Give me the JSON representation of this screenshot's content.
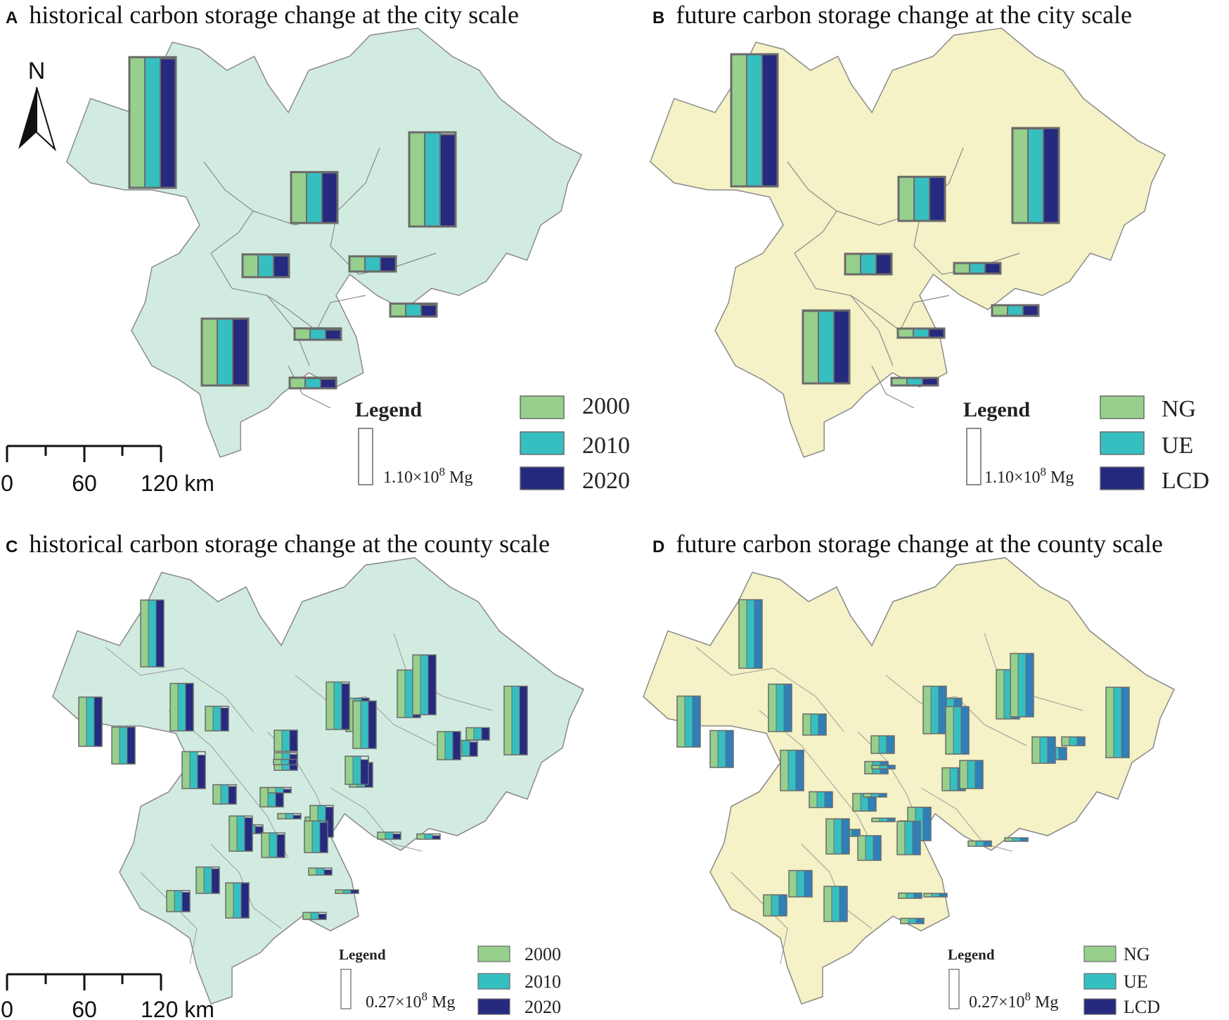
{
  "panels": [
    {
      "letter": "A",
      "title": "historical carbon storage change at the city scale"
    },
    {
      "letter": "B",
      "title": "future carbon storage change at the city scale"
    },
    {
      "letter": "C",
      "title": "historical carbon storage change at the county scale"
    },
    {
      "letter": "D",
      "title": "future carbon storage change at the county scale"
    }
  ],
  "north_label": "N",
  "scale_bar": {
    "labels": [
      "0",
      "60",
      "120 km"
    ]
  },
  "legend": {
    "title": "Legend",
    "city_reference": {
      "base": "1.10×10",
      "exp": "8",
      "unit": " Mg"
    },
    "county_reference": {
      "base": "0.27×10",
      "exp": "8",
      "unit": " Mg"
    },
    "historical_series": [
      "2000",
      "2010",
      "2020"
    ],
    "future_series": [
      "NG",
      "UE",
      "LCD"
    ]
  },
  "colors": {
    "green": "#96d08c",
    "teal": "#36bfc0",
    "navy": "#252a7f",
    "blue_future": "#2f7fb8",
    "historical_map_fill": "#d2ebe1",
    "future_map_fill": "#f4f2c6",
    "boundary": "#8a8a8a",
    "bar_outline": "#6b6b6b"
  },
  "chart_data": [
    {
      "type": "bar",
      "title": "historical carbon storage change at the city scale",
      "unit": "×10^8 Mg",
      "series_names": [
        "2000",
        "2010",
        "2020"
      ],
      "regions": [
        {
          "values": [
            1.72,
            1.72,
            1.7
          ]
        },
        {
          "values": [
            0.67,
            0.67,
            0.66
          ]
        },
        {
          "values": [
            1.24,
            1.24,
            1.21
          ]
        },
        {
          "values": [
            0.3,
            0.3,
            0.28
          ]
        },
        {
          "values": [
            0.2,
            0.2,
            0.19
          ]
        },
        {
          "values": [
            0.17,
            0.17,
            0.15
          ]
        },
        {
          "values": [
            0.88,
            0.88,
            0.88
          ]
        },
        {
          "values": [
            0.15,
            0.14,
            0.13
          ]
        },
        {
          "values": [
            0.14,
            0.13,
            0.12
          ]
        }
      ]
    },
    {
      "type": "bar",
      "title": "future carbon storage change at the city scale",
      "unit": "×10^8 Mg",
      "series_names": [
        "NG",
        "UE",
        "LCD"
      ],
      "regions": [
        {
          "values": [
            1.74,
            1.74,
            1.74
          ]
        },
        {
          "values": [
            0.58,
            0.58,
            0.58
          ]
        },
        {
          "values": [
            1.24,
            1.24,
            1.25
          ]
        },
        {
          "values": [
            0.27,
            0.27,
            0.27
          ]
        },
        {
          "values": [
            0.14,
            0.14,
            0.14
          ]
        },
        {
          "values": [
            0.14,
            0.14,
            0.14
          ]
        },
        {
          "values": [
            0.95,
            0.95,
            0.96
          ]
        },
        {
          "values": [
            0.12,
            0.12,
            0.12
          ]
        },
        {
          "values": [
            0.1,
            0.1,
            0.1
          ]
        }
      ]
    },
    {
      "type": "bar",
      "title": "historical carbon storage change at the county scale",
      "unit": "×10^8 Mg",
      "series_names": [
        "2000",
        "2010",
        "2020"
      ],
      "regions": [
        {
          "values": [
            0.38,
            0.38,
            0.38
          ]
        },
        {
          "values": [
            0.27,
            0.27,
            0.27
          ]
        },
        {
          "values": [
            0.28,
            0.28,
            0.28
          ]
        },
        {
          "values": [
            0.14,
            0.14,
            0.13
          ]
        },
        {
          "values": [
            0.21,
            0.21,
            0.21
          ]
        },
        {
          "values": [
            0.19,
            0.19,
            0.19
          ]
        },
        {
          "values": [
            0.27,
            0.27,
            0.26
          ]
        },
        {
          "values": [
            0.27,
            0.27,
            0.27
          ]
        },
        {
          "values": [
            0.34,
            0.34,
            0.34
          ]
        },
        {
          "values": [
            0.09,
            0.09,
            0.08
          ]
        },
        {
          "values": [
            0.07,
            0.07,
            0.07
          ]
        },
        {
          "values": [
            0.16,
            0.16,
            0.16
          ]
        },
        {
          "values": [
            0.14,
            0.14,
            0.14
          ]
        },
        {
          "values": [
            0.12,
            0.12,
            0.12
          ]
        },
        {
          "values": [
            0.1,
            0.1,
            0.09
          ]
        },
        {
          "values": [
            0.21,
            0.21,
            0.19
          ]
        },
        {
          "values": [
            0.11,
            0.11,
            0.1
          ]
        },
        {
          "values": [
            0.11,
            0.11,
            0.09
          ]
        },
        {
          "values": [
            0.05,
            0.05,
            0.04
          ]
        },
        {
          "values": [
            0.05,
            0.05,
            0.04
          ]
        },
        {
          "values": [
            0.2,
            0.2,
            0.19
          ]
        },
        {
          "values": [
            0.18,
            0.18,
            0.17
          ]
        },
        {
          "values": [
            0.14,
            0.14,
            0.13
          ]
        },
        {
          "values": [
            0.15,
            0.15,
            0.14
          ]
        },
        {
          "values": [
            0.12,
            0.12,
            0.11
          ]
        },
        {
          "values": [
            0.2,
            0.2,
            0.2
          ]
        },
        {
          "values": [
            0.18,
            0.18,
            0.17
          ]
        },
        {
          "values": [
            0.16,
            0.16,
            0.14
          ]
        },
        {
          "values": [
            0.27,
            0.27,
            0.27
          ]
        },
        {
          "values": [
            0.04,
            0.04,
            0.03
          ]
        },
        {
          "values": [
            0.03,
            0.03,
            0.02
          ]
        },
        {
          "values": [
            0.04,
            0.04,
            0.03
          ]
        },
        {
          "values": [
            0.02,
            0.02,
            0.02
          ]
        },
        {
          "values": [
            0.39,
            0.39,
            0.39
          ]
        },
        {
          "values": [
            0.03,
            0.03,
            0.03
          ]
        },
        {
          "values": [
            0.03,
            0.03,
            0.02
          ]
        },
        {
          "values": [
            0.03,
            0.03,
            0.02
          ]
        },
        {
          "values": [
            0.04,
            0.04,
            0.03
          ]
        }
      ]
    },
    {
      "type": "bar",
      "title": "future carbon storage change at the county scale",
      "unit": "×10^8 Mg",
      "series_names": [
        "NG",
        "UE",
        "LCD"
      ],
      "regions": [
        {
          "values": [
            0.39,
            0.39,
            0.39
          ]
        },
        {
          "values": [
            0.27,
            0.27,
            0.27
          ]
        },
        {
          "values": [
            0.29,
            0.29,
            0.29
          ]
        },
        {
          "values": [
            0.12,
            0.12,
            0.12
          ]
        },
        {
          "values": [
            0.21,
            0.21,
            0.21
          ]
        },
        {
          "values": [
            0.19,
            0.19,
            0.19
          ]
        },
        {
          "values": [
            0.27,
            0.27,
            0.27
          ]
        },
        {
          "values": [
            0.28,
            0.28,
            0.28
          ]
        },
        {
          "values": [
            0.36,
            0.36,
            0.36
          ]
        },
        {
          "values": [
            0.07,
            0.07,
            0.07
          ]
        },
        {
          "values": [
            0.05,
            0.05,
            0.05
          ]
        },
        {
          "values": [
            0.15,
            0.15,
            0.15
          ]
        },
        {
          "values": [
            0.13,
            0.13,
            0.13
          ]
        },
        {
          "values": [
            0.1,
            0.1,
            0.1
          ]
        },
        {
          "values": [
            0.07,
            0.07,
            0.07
          ]
        },
        {
          "values": [
            0.23,
            0.23,
            0.23
          ]
        },
        {
          "values": [
            0.09,
            0.09,
            0.09
          ]
        },
        {
          "values": [
            0.1,
            0.1,
            0.1
          ]
        },
        {
          "values": [
            0.04,
            0.04,
            0.04
          ]
        },
        {
          "values": [
            0.04,
            0.04,
            0.04
          ]
        },
        {
          "values": [
            0.2,
            0.2,
            0.2
          ]
        },
        {
          "values": [
            0.19,
            0.19,
            0.19
          ]
        },
        {
          "values": [
            0.14,
            0.14,
            0.14
          ]
        },
        {
          "values": [
            0.15,
            0.15,
            0.15
          ]
        },
        {
          "values": [
            0.12,
            0.12,
            0.12
          ]
        },
        {
          "values": [
            0.2,
            0.2,
            0.2
          ]
        },
        {
          "values": [
            0.19,
            0.19,
            0.19
          ]
        },
        {
          "values": [
            0.16,
            0.16,
            0.16
          ]
        },
        {
          "values": [
            0.27,
            0.27,
            0.27
          ]
        },
        {
          "values": [
            0.03,
            0.03,
            0.03
          ]
        },
        {
          "values": [
            0.02,
            0.02,
            0.02
          ]
        },
        {
          "values": [
            0.03,
            0.03,
            0.03
          ]
        },
        {
          "values": [
            0.02,
            0.02,
            0.02
          ]
        },
        {
          "values": [
            0.4,
            0.4,
            0.4
          ]
        },
        {
          "values": [
            0.02,
            0.02,
            0.02
          ]
        },
        {
          "values": [
            0.02,
            0.02,
            0.02
          ]
        },
        {
          "values": [
            0.02,
            0.02,
            0.02
          ]
        },
        {
          "values": [
            0.03,
            0.03,
            0.03
          ]
        }
      ]
    }
  ]
}
